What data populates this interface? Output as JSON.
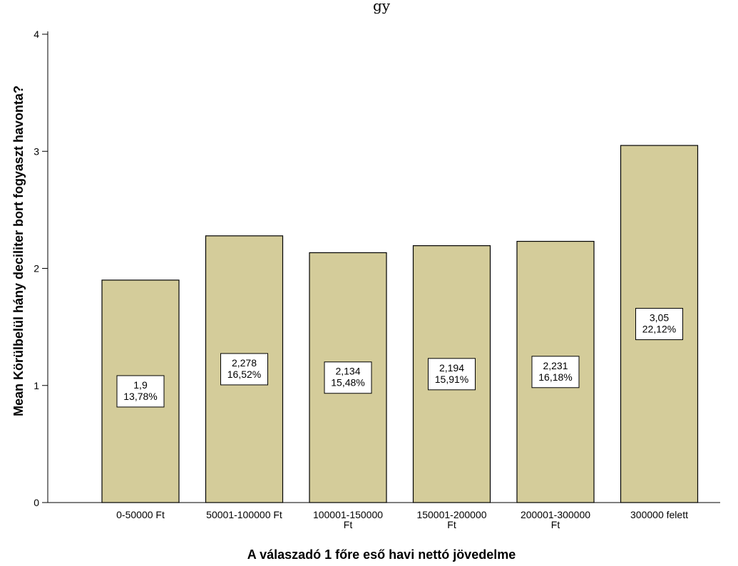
{
  "title_fragment": "gy",
  "chart_data": {
    "type": "bar",
    "categories": [
      [
        "0-50000 Ft"
      ],
      [
        "50001-100000 Ft"
      ],
      [
        "100001-150000",
        "Ft"
      ],
      [
        "150001-200000",
        "Ft"
      ],
      [
        "200001-300000",
        "Ft"
      ],
      [
        "300000 felett"
      ]
    ],
    "values": [
      1.9,
      2.278,
      2.134,
      2.194,
      2.231,
      3.05
    ],
    "value_labels": [
      "1,9",
      "2,278",
      "2,134",
      "2,194",
      "2,231",
      "3,05"
    ],
    "percent_labels": [
      "13,78%",
      "16,52%",
      "15,48%",
      "15,91%",
      "16,18%",
      "22,12%"
    ],
    "xlabel": "A válaszadó 1 főre eső havi nettó jövedelme",
    "ylabel": "Mean  Körülbelül hány deciliter bort fogyaszt havonta?",
    "ylim": [
      0,
      4
    ],
    "yticks": [
      0,
      1,
      2,
      3,
      4
    ],
    "grid": false,
    "bar_color": "#d4cc9a"
  }
}
